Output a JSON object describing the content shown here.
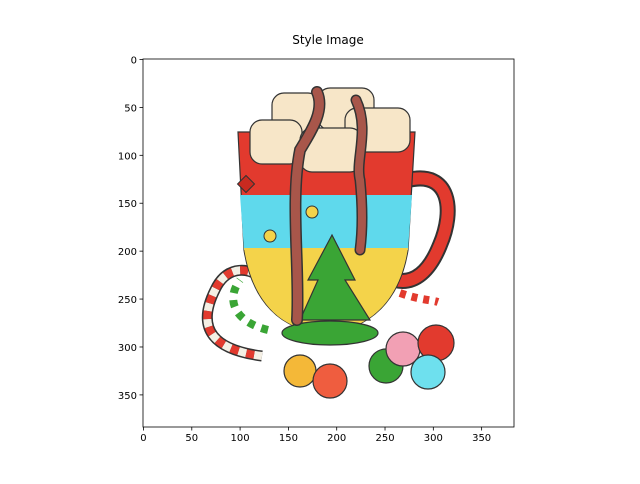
{
  "chart_data": {
    "type": "image",
    "title": "Style Image",
    "xlim": [
      -0.5,
      383.5
    ],
    "ylim": [
      383.5,
      -0.5
    ],
    "xticks": [
      0,
      50,
      100,
      150,
      200,
      250,
      300,
      350
    ],
    "yticks": [
      0,
      50,
      100,
      150,
      200,
      250,
      300,
      350
    ]
  }
}
